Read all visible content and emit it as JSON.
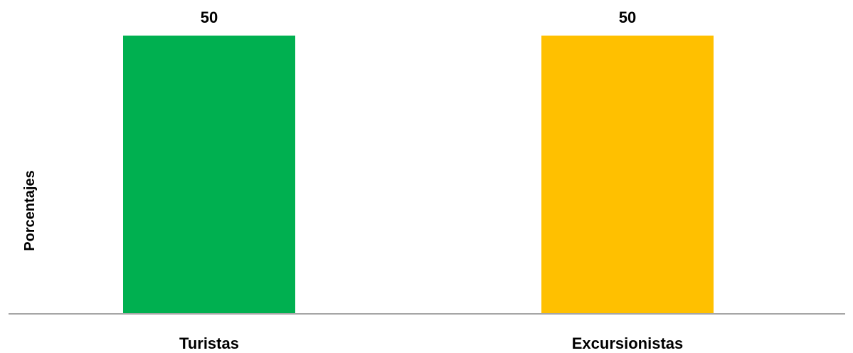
{
  "chart_data": {
    "type": "bar",
    "title": "",
    "xlabel": "",
    "ylabel": "Porcentajes",
    "categories": [
      "Turistas",
      "Excursionistas"
    ],
    "values": [
      50,
      50
    ],
    "colors": [
      "#00B050",
      "#FFC000"
    ],
    "ylim": [
      0,
      50
    ],
    "grid": false,
    "legend": "none",
    "data_labels": [
      "50",
      "50"
    ],
    "axis_color": "#A6A6A6"
  }
}
